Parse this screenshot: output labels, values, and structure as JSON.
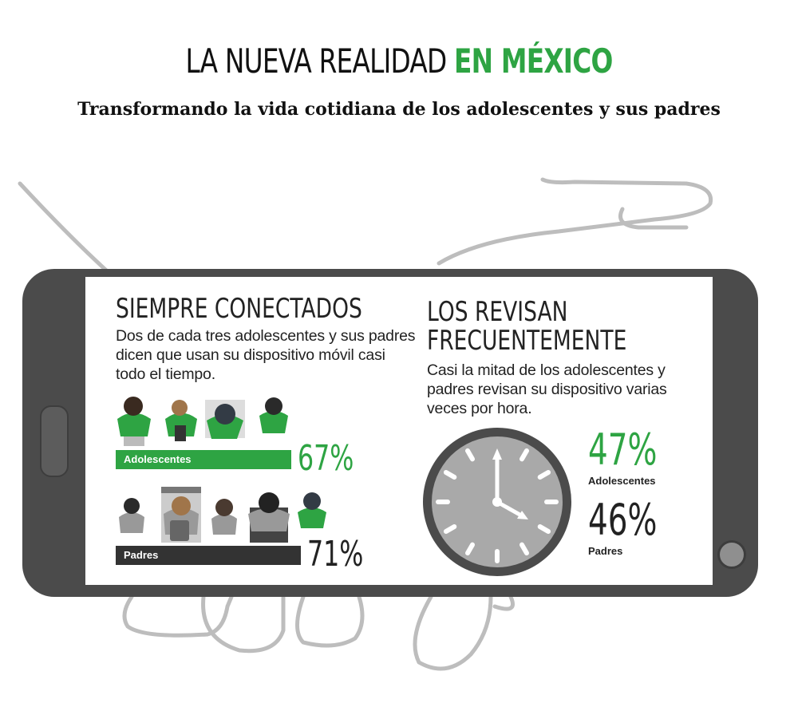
{
  "header": {
    "title_part1": "LA NUEVA REALIDAD",
    "title_part2": "EN MÉXICO",
    "subtitle": "Transformando la vida cotidiana de los adolescentes y sus padres"
  },
  "left": {
    "heading": "SIEMPRE CONECTADOS",
    "text": "Dos de cada tres adolescentes y sus padres dicen que usan su dispositivo móvil casi todo el tiempo.",
    "teens": {
      "label": "Adolescentes",
      "value": "67%",
      "fraction": 0.67
    },
    "parents": {
      "label": "Padres",
      "value": "71%",
      "fraction": 0.71
    }
  },
  "right": {
    "heading_line1": "LOS REVISAN",
    "heading_line2": "FRECUENTEMENTE",
    "text": "Casi la mitad de los adolescentes y padres revisan su dispositivo varias veces por hora.",
    "teens": {
      "label": "Adolescentes",
      "value": "47%"
    },
    "parents": {
      "label": "Padres",
      "value": "46%"
    }
  },
  "colors": {
    "green": "#2ea443",
    "dark": "#333333",
    "phone": "#4b4b4b"
  }
}
